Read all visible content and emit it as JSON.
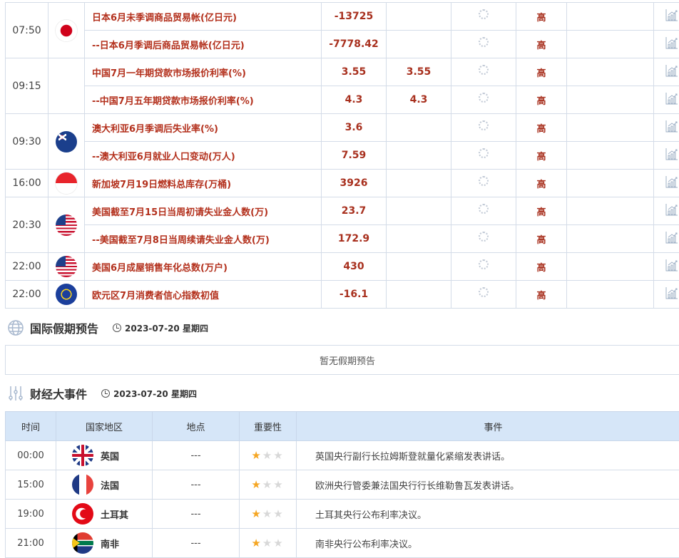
{
  "indicators": [
    {
      "time": "07:50",
      "flag": "japan",
      "items": [
        {
          "name": "日本6月未季调商品贸易帐(亿日元)",
          "previous": "-13725",
          "forecast": "",
          "importance": "高"
        },
        {
          "name": "--日本6月季调后商品贸易帐(亿日元)",
          "previous": "-7778.42",
          "forecast": "",
          "importance": "高"
        }
      ]
    },
    {
      "time": "09:15",
      "flag": "china",
      "items": [
        {
          "name": "中国7月一年期贷款市场报价利率(%)",
          "previous": "3.55",
          "forecast": "3.55",
          "importance": "高"
        },
        {
          "name": "--中国7月五年期贷款市场报价利率(%)",
          "previous": "4.3",
          "forecast": "4.3",
          "importance": "高"
        }
      ]
    },
    {
      "time": "09:30",
      "flag": "australia",
      "items": [
        {
          "name": "澳大利亚6月季调后失业率(%)",
          "previous": "3.6",
          "forecast": "",
          "importance": "高"
        },
        {
          "name": "--澳大利亚6月就业人口变动(万人)",
          "previous": "7.59",
          "forecast": "",
          "importance": "高"
        }
      ]
    },
    {
      "time": "16:00",
      "flag": "singapore",
      "items": [
        {
          "name": "新加坡7月19日燃料总库存(万桶)",
          "previous": "3926",
          "forecast": "",
          "importance": "高"
        }
      ]
    },
    {
      "time": "20:30",
      "flag": "us",
      "items": [
        {
          "name": "美国截至7月15日当周初请失业金人数(万)",
          "previous": "23.7",
          "forecast": "",
          "importance": "高"
        },
        {
          "name": "--美国截至7月8日当周续请失业金人数(万)",
          "previous": "172.9",
          "forecast": "",
          "importance": "高"
        }
      ]
    },
    {
      "time": "22:00",
      "flag": "us",
      "items": [
        {
          "name": "美国6月成屋销售年化总数(万户)",
          "previous": "430",
          "forecast": "",
          "importance": "高"
        }
      ]
    },
    {
      "time": "22:00",
      "flag": "eu",
      "items": [
        {
          "name": "欧元区7月消费者信心指数初值",
          "previous": "-16.1",
          "forecast": "",
          "importance": "高"
        }
      ]
    }
  ],
  "holidays": {
    "title": "国际假期预告",
    "date": "2023-07-20 星期四",
    "empty_text": "暂无假期预告"
  },
  "events": {
    "title": "财经大事件",
    "date": "2023-07-20 星期四",
    "headers": [
      "时间",
      "国家地区",
      "地点",
      "重要性",
      "事件"
    ],
    "rows": [
      {
        "time": "00:00",
        "flag": "uk",
        "country": "英国",
        "location": "---",
        "stars": 1,
        "event": "英国央行副行长拉姆斯登就量化紧缩发表讲话。"
      },
      {
        "time": "15:00",
        "flag": "france",
        "country": "法国",
        "location": "---",
        "stars": 1,
        "event": "欧洲央行管委兼法国央行行长维勒鲁瓦发表讲话。"
      },
      {
        "time": "19:00",
        "flag": "turkey",
        "country": "土耳其",
        "location": "---",
        "stars": 1,
        "event": "土耳其央行公布利率决议。"
      },
      {
        "time": "21:00",
        "flag": "za",
        "country": "南非",
        "location": "---",
        "stars": 1,
        "event": "南非央行公布利率决议。"
      }
    ]
  },
  "colors": {
    "indicator_text": "#b3301c",
    "header_bg": "#d6e6f8",
    "star_on": "#f5a623",
    "star_off": "#d8d8d8"
  }
}
